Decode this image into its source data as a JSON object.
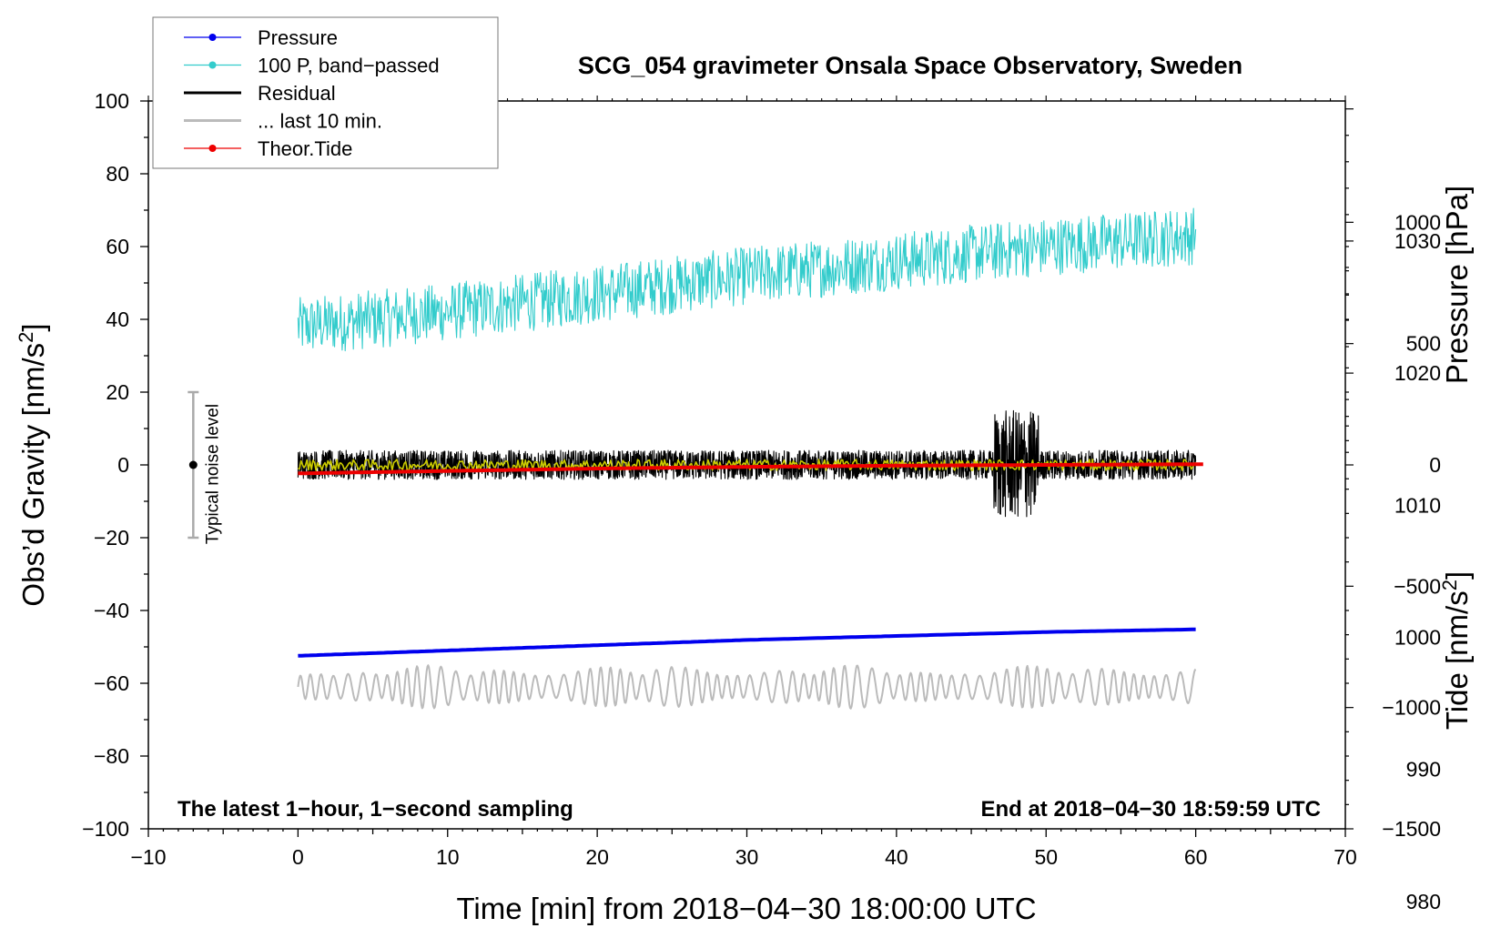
{
  "chart_data": {
    "type": "line",
    "title": "SCG_054 gravimeter Onsala Space Observatory, Sweden",
    "xlabel": "Time [min] from 2018−04−30 18:00:00 UTC",
    "ylabel_main": "Obs’d Gravity [nm/s",
    "ylabel_pressure": "Pressure [hPa]",
    "ylabel_tide": "Tide [nm/s",
    "unit_superscript": "2",
    "unit_close": "]",
    "xlim": [
      -10,
      70
    ],
    "ylim": [
      -100,
      100
    ],
    "pressure_lim": [
      985.5,
      1040.6
    ],
    "tide_lim": [
      -1500,
      1500
    ],
    "x_ticks": [
      {
        "value": -10,
        "label": "−10"
      },
      {
        "value": 0,
        "label": "0"
      },
      {
        "value": 10,
        "label": "10"
      },
      {
        "value": 20,
        "label": "20"
      },
      {
        "value": 30,
        "label": "30"
      },
      {
        "value": 40,
        "label": "40"
      },
      {
        "value": 50,
        "label": "50"
      },
      {
        "value": 60,
        "label": "60"
      },
      {
        "value": 70,
        "label": "70"
      }
    ],
    "y_ticks": [
      {
        "value": 100,
        "label": "100"
      },
      {
        "value": 80,
        "label": "80"
      },
      {
        "value": 60,
        "label": "60"
      },
      {
        "value": 40,
        "label": "40"
      },
      {
        "value": 20,
        "label": "20"
      },
      {
        "value": 0,
        "label": "0"
      },
      {
        "value": -20,
        "label": "−20"
      },
      {
        "value": -40,
        "label": "−40"
      },
      {
        "value": -60,
        "label": "−60"
      },
      {
        "value": -80,
        "label": "−80"
      },
      {
        "value": -100,
        "label": "−100"
      }
    ],
    "pressure_ticks": [
      {
        "value": 1030,
        "label": "1030"
      },
      {
        "value": 1020,
        "label": "1020"
      },
      {
        "value": 1010,
        "label": "1010"
      },
      {
        "value": 1000,
        "label": "1000"
      },
      {
        "value": 990,
        "label": "990"
      },
      {
        "value": 980,
        "label": "980"
      }
    ],
    "tide_ticks": [
      {
        "value": 1000,
        "label": "1000"
      },
      {
        "value": 500,
        "label": "500"
      },
      {
        "value": 0,
        "label": "0"
      },
      {
        "value": -500,
        "label": "−500"
      },
      {
        "value": -1000,
        "label": "−1000"
      },
      {
        "value": -1500,
        "label": "−1500"
      }
    ],
    "legend": [
      {
        "name": "Pressure",
        "color": "#0000ee",
        "marker": true
      },
      {
        "name": "100 P, band−passed",
        "color": "#33cccc",
        "marker": true
      },
      {
        "name": "Residual",
        "color": "#000000",
        "marker": false
      },
      {
        "name": "... last 10 min.",
        "color": "#bbbbbb",
        "marker": false
      },
      {
        "name": "Theor.Tide",
        "color": "#ee0000",
        "marker": true
      }
    ],
    "series": [
      {
        "name": "Pressure",
        "axis": "pressure",
        "color": "#0000ee",
        "x": [
          0,
          10,
          20,
          30,
          40,
          50,
          60
        ],
        "values": [
          998.6,
          999.0,
          999.4,
          999.8,
          1000.1,
          1000.4,
          1000.6
        ]
      },
      {
        "name": "100 P, band−passed",
        "axis": "main",
        "color": "#33cccc",
        "x": [
          0,
          10,
          20,
          30,
          40,
          50,
          60
        ],
        "values": [
          38,
          42,
          47,
          52,
          56,
          60,
          63
        ],
        "noise_amplitude": 8
      },
      {
        "name": "Residual",
        "axis": "main",
        "color": "#000000",
        "x": [
          0,
          60
        ],
        "values": [
          0,
          0
        ],
        "noise_amplitude": 4,
        "disturbance": {
          "x_start": 46.5,
          "x_end": 49.5,
          "amplitude": 15
        }
      },
      {
        "name": "Residual smoothed",
        "axis": "main",
        "color": "#cccc00",
        "x": [
          0,
          60
        ],
        "values": [
          0,
          0
        ],
        "noise_amplitude": 1.5
      },
      {
        "name": "... last 10 min.",
        "axis": "main",
        "color": "#bbbbbb",
        "x": [
          0,
          60
        ],
        "values": [
          -61,
          -61
        ],
        "noise_amplitude": 6
      },
      {
        "name": "Theor.Tide",
        "axis": "tide",
        "color": "#ee0000",
        "x": [
          0,
          10,
          20,
          30,
          40,
          50,
          60.5
        ],
        "values": [
          -35,
          -25,
          -15,
          -8,
          -3,
          0,
          3
        ]
      }
    ],
    "noise_bar": {
      "x": -7,
      "y_low": -20,
      "y_high": 20,
      "label": "Typical noise level"
    },
    "annotations": {
      "bottom_left": "The latest 1−hour, 1−second sampling",
      "bottom_right": "End at 2018−04−30 18:59:59 UTC"
    }
  }
}
